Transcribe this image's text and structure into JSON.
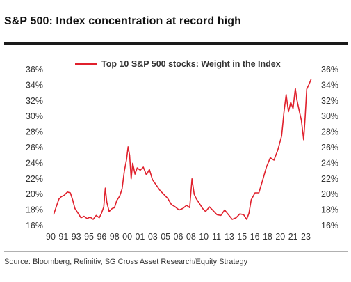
{
  "header": {
    "title": "S&P 500: Index concentration at record high"
  },
  "footer": {
    "source": "Source: Bloomberg, Refinitiv, SG Cross Asset Research/Equity Strategy"
  },
  "colors": {
    "line": "#e0202c",
    "text": "#333333",
    "rule": "#1a1a1a"
  },
  "chart_data": {
    "type": "line",
    "title": "",
    "xlabel": "",
    "ylabel": "",
    "ylim": [
      16,
      36
    ],
    "y_ticks": [
      "16%",
      "18%",
      "20%",
      "22%",
      "24%",
      "26%",
      "28%",
      "30%",
      "32%",
      "34%",
      "36%"
    ],
    "secondary_y_ticks": [
      "16%",
      "18%",
      "20%",
      "22%",
      "24%",
      "26%",
      "28%",
      "30%",
      "32%",
      "34%",
      "36%"
    ],
    "x_ticks": [
      "90",
      "91",
      "93",
      "95",
      "96",
      "98",
      "00",
      "01",
      "03",
      "05",
      "06",
      "08",
      "10",
      "11",
      "13",
      "15",
      "16",
      "18",
      "20",
      "21",
      "23"
    ],
    "legend": {
      "position": "top-center",
      "entries": [
        "Top 10 S&P 500 stocks: Weight in the Index"
      ]
    },
    "grid": false,
    "series": [
      {
        "name": "Top 10 S&P 500 stocks: Weight in the Index",
        "points": [
          [
            1990.0,
            17.4
          ],
          [
            1990.3,
            18.3
          ],
          [
            1990.7,
            19.4
          ],
          [
            1991.0,
            19.7
          ],
          [
            1991.4,
            19.9
          ],
          [
            1991.8,
            20.3
          ],
          [
            1992.2,
            20.2
          ],
          [
            1992.5,
            19.3
          ],
          [
            1992.8,
            18.2
          ],
          [
            1993.2,
            17.6
          ],
          [
            1993.6,
            17.0
          ],
          [
            1994.0,
            17.2
          ],
          [
            1994.4,
            16.9
          ],
          [
            1994.8,
            17.1
          ],
          [
            1995.2,
            16.8
          ],
          [
            1995.6,
            17.3
          ],
          [
            1996.0,
            17.0
          ],
          [
            1996.3,
            17.6
          ],
          [
            1996.6,
            18.4
          ],
          [
            1996.8,
            20.8
          ],
          [
            1997.0,
            19.0
          ],
          [
            1997.3,
            17.8
          ],
          [
            1997.7,
            18.2
          ],
          [
            1998.0,
            18.3
          ],
          [
            1998.3,
            19.2
          ],
          [
            1998.7,
            19.8
          ],
          [
            1999.0,
            20.7
          ],
          [
            1999.3,
            23.0
          ],
          [
            1999.6,
            24.5
          ],
          [
            1999.8,
            26.1
          ],
          [
            2000.0,
            25.0
          ],
          [
            2000.2,
            22.0
          ],
          [
            2000.4,
            24.0
          ],
          [
            2000.7,
            22.6
          ],
          [
            2001.0,
            23.4
          ],
          [
            2001.4,
            23.1
          ],
          [
            2001.8,
            23.5
          ],
          [
            2002.2,
            22.5
          ],
          [
            2002.6,
            23.2
          ],
          [
            2003.0,
            21.9
          ],
          [
            2003.5,
            21.2
          ],
          [
            2004.0,
            20.5
          ],
          [
            2004.5,
            20.0
          ],
          [
            2005.0,
            19.5
          ],
          [
            2005.5,
            18.7
          ],
          [
            2006.0,
            18.4
          ],
          [
            2006.5,
            18.0
          ],
          [
            2007.0,
            18.2
          ],
          [
            2007.5,
            18.6
          ],
          [
            2007.9,
            18.3
          ],
          [
            2008.2,
            22.0
          ],
          [
            2008.5,
            20.0
          ],
          [
            2008.8,
            19.4
          ],
          [
            2009.2,
            18.8
          ],
          [
            2009.6,
            18.2
          ],
          [
            2010.0,
            17.8
          ],
          [
            2010.5,
            18.4
          ],
          [
            2011.0,
            17.9
          ],
          [
            2011.5,
            17.4
          ],
          [
            2012.0,
            17.3
          ],
          [
            2012.5,
            18.0
          ],
          [
            2013.0,
            17.4
          ],
          [
            2013.5,
            16.8
          ],
          [
            2014.0,
            17.0
          ],
          [
            2014.5,
            17.5
          ],
          [
            2015.0,
            17.4
          ],
          [
            2015.4,
            16.8
          ],
          [
            2015.7,
            17.6
          ],
          [
            2016.0,
            19.3
          ],
          [
            2016.5,
            20.2
          ],
          [
            2017.0,
            20.2
          ],
          [
            2017.5,
            21.8
          ],
          [
            2018.0,
            23.5
          ],
          [
            2018.5,
            24.7
          ],
          [
            2019.0,
            24.4
          ],
          [
            2019.5,
            25.7
          ],
          [
            2020.0,
            27.5
          ],
          [
            2020.3,
            30.5
          ],
          [
            2020.6,
            32.8
          ],
          [
            2020.9,
            30.6
          ],
          [
            2021.2,
            31.8
          ],
          [
            2021.5,
            31.0
          ],
          [
            2021.8,
            33.6
          ],
          [
            2022.0,
            32.2
          ],
          [
            2022.3,
            30.8
          ],
          [
            2022.6,
            29.5
          ],
          [
            2022.9,
            27.0
          ],
          [
            2023.1,
            30.0
          ],
          [
            2023.3,
            33.5
          ],
          [
            2023.6,
            34.1
          ],
          [
            2023.9,
            34.8
          ]
        ]
      }
    ]
  }
}
